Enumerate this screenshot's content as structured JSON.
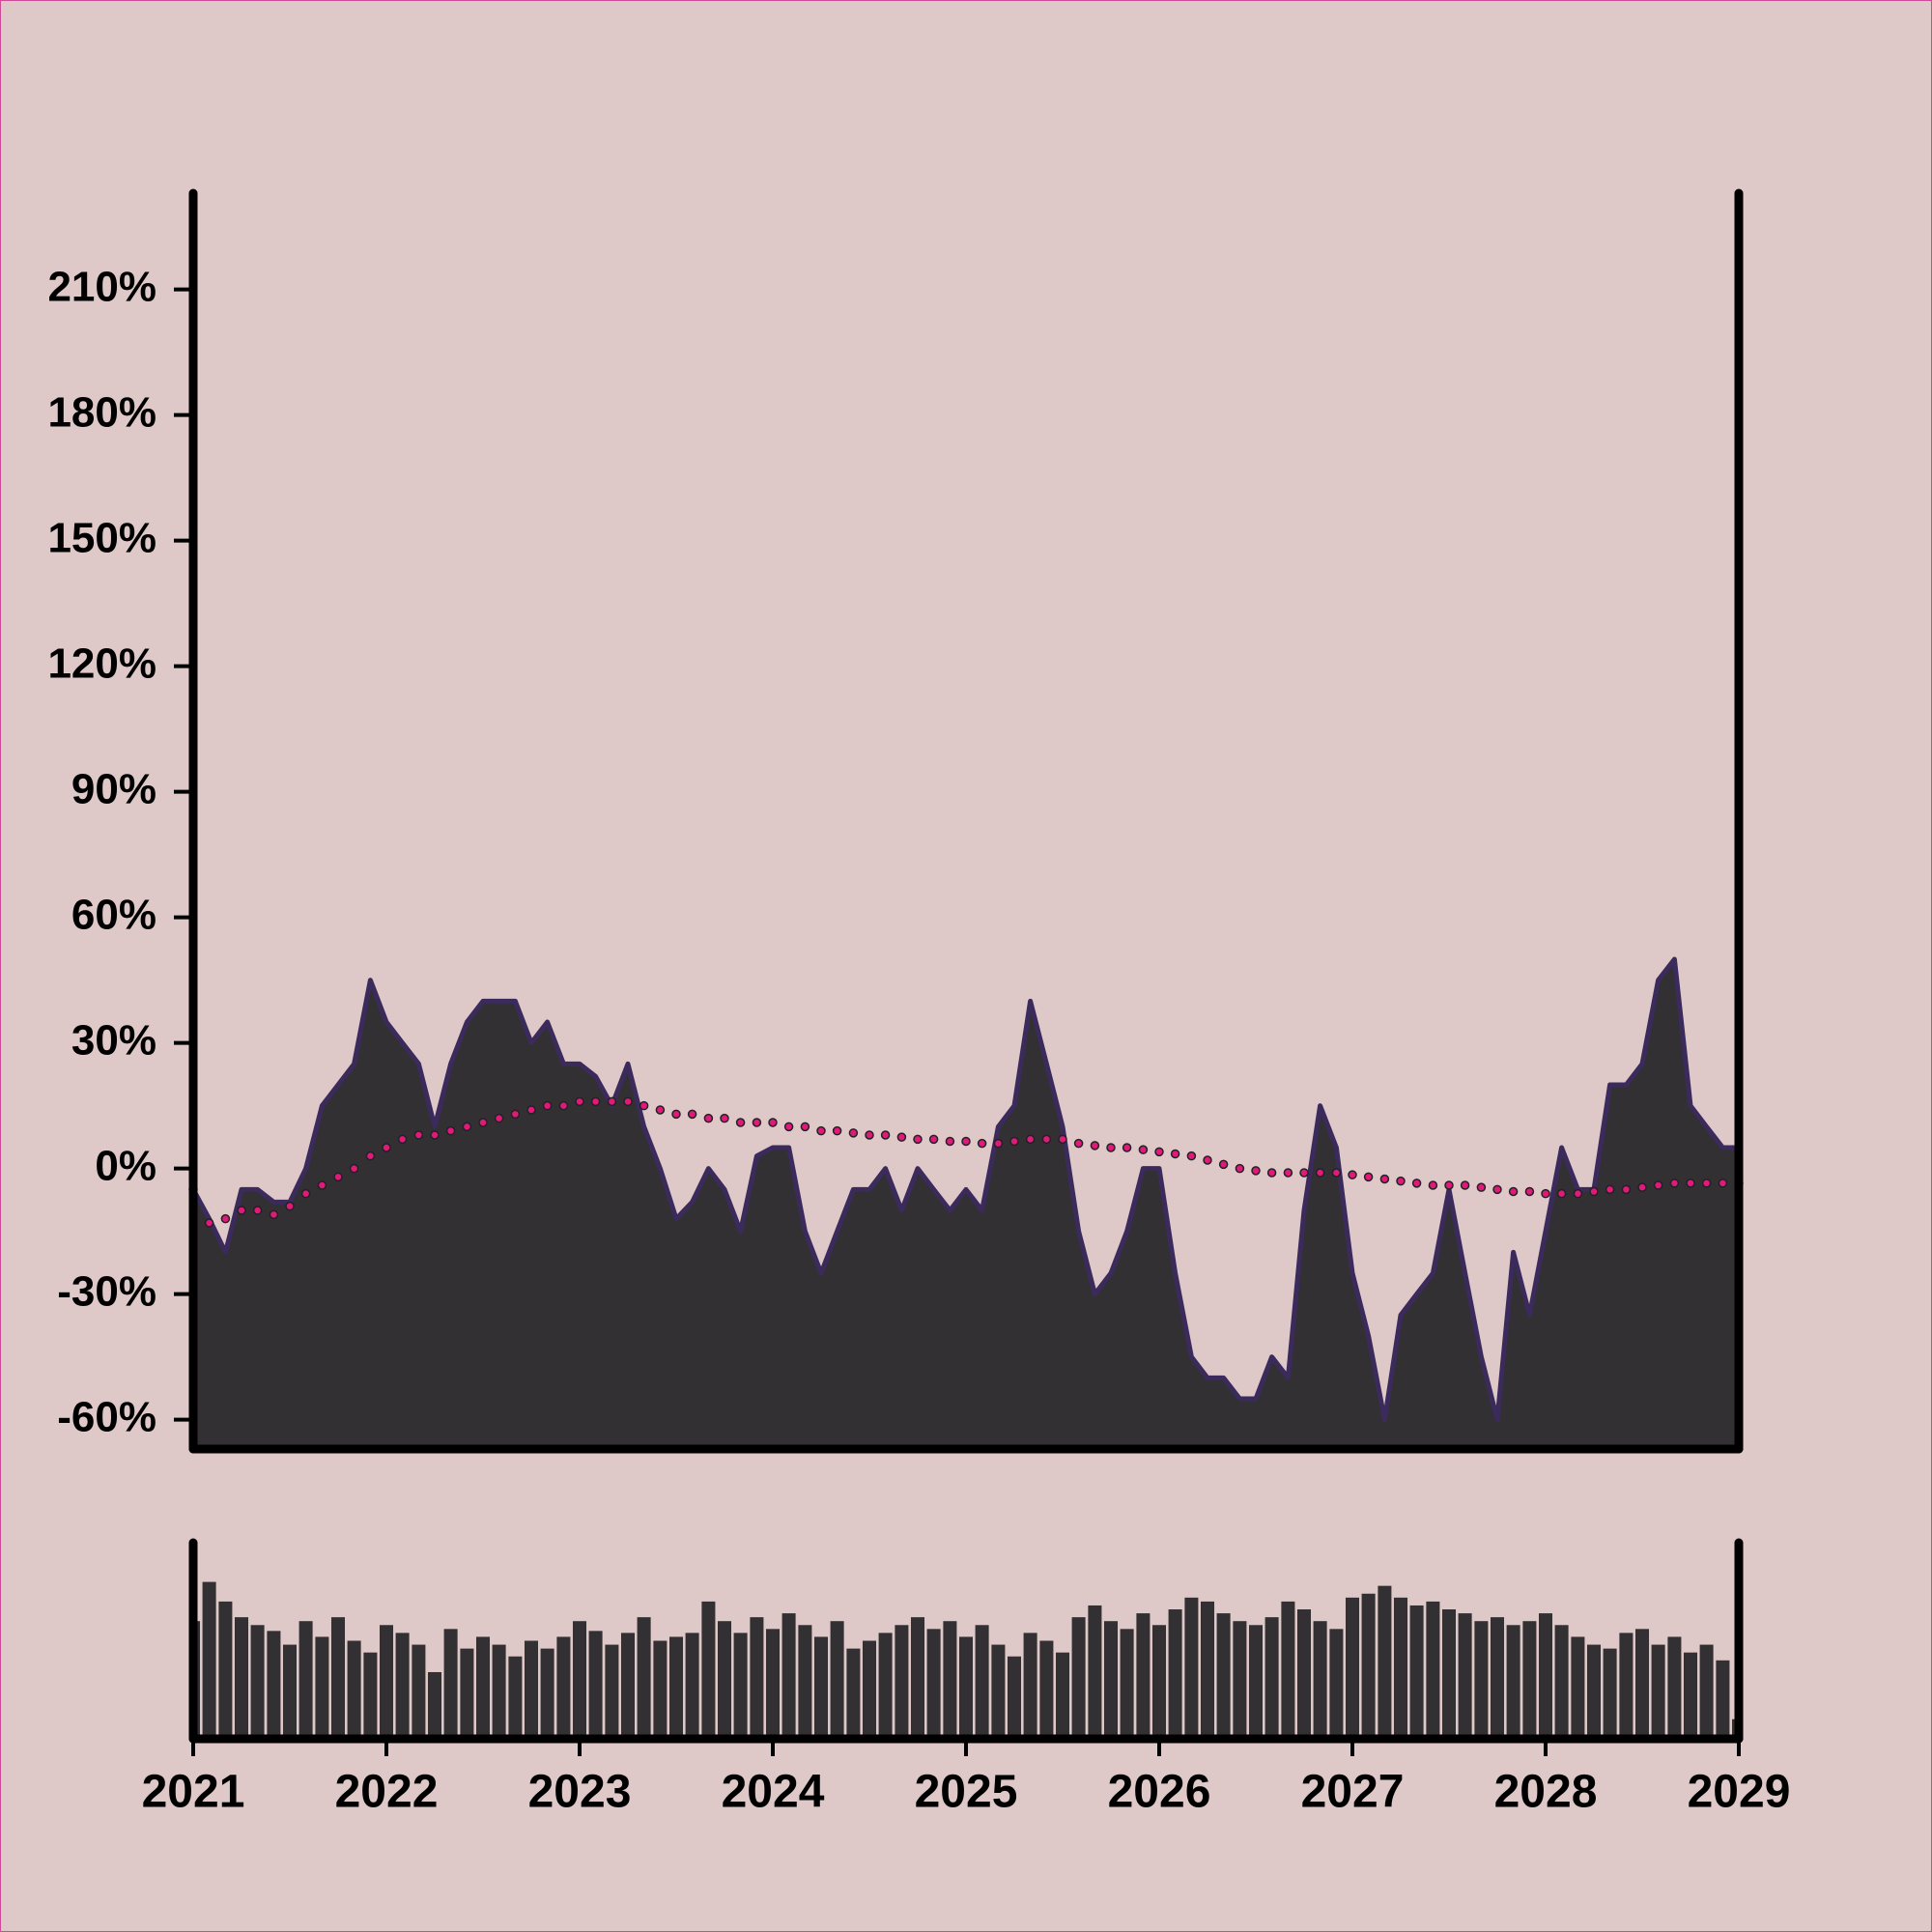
{
  "chart_data": [
    {
      "type": "area",
      "x": [
        2021,
        2021.083,
        2021.167,
        2021.25,
        2021.333,
        2021.417,
        2021.5,
        2021.583,
        2021.667,
        2021.75,
        2021.833,
        2021.917,
        2022,
        2022.083,
        2022.167,
        2022.25,
        2022.333,
        2022.417,
        2022.5,
        2022.583,
        2022.667,
        2022.75,
        2022.833,
        2022.917,
        2023,
        2023.083,
        2023.167,
        2023.25,
        2023.333,
        2023.417,
        2023.5,
        2023.583,
        2023.667,
        2023.75,
        2023.833,
        2023.917,
        2024,
        2024.083,
        2024.167,
        2024.25,
        2024.333,
        2024.417,
        2024.5,
        2024.583,
        2024.667,
        2024.75,
        2024.833,
        2024.917,
        2025,
        2025.083,
        2025.167,
        2025.25,
        2025.333,
        2025.417,
        2025.5,
        2025.583,
        2025.667,
        2025.75,
        2025.833,
        2025.917,
        2026,
        2026.083,
        2026.167,
        2026.25,
        2026.333,
        2026.417,
        2026.5,
        2026.583,
        2026.667,
        2026.75,
        2026.833,
        2026.917,
        2027,
        2027.083,
        2027.167,
        2027.25,
        2027.333,
        2027.417,
        2027.5,
        2027.583,
        2027.667,
        2027.75,
        2027.833,
        2027.917,
        2028,
        2028.083,
        2028.167,
        2028.25,
        2028.333,
        2028.417,
        2028.5,
        2028.583,
        2028.667,
        2028.75,
        2028.833,
        2028.917,
        2029
      ],
      "series": [
        {
          "color": "#333033",
          "line_color": "#3a2b5c",
          "values": [
            -5,
            -12,
            -20,
            -5,
            -5,
            -8,
            -8,
            0,
            15,
            20,
            25,
            45,
            35,
            30,
            25,
            10,
            25,
            35,
            40,
            40,
            40,
            30,
            35,
            25,
            25,
            22,
            15,
            25,
            10,
            0,
            -12,
            -8,
            0,
            -5,
            -15,
            3,
            5,
            5,
            -15,
            -25,
            -15,
            -5,
            -5,
            0,
            -10,
            0,
            -5,
            -10,
            -5,
            -10,
            10,
            15,
            40,
            25,
            10,
            -15,
            -30,
            -25,
            -15,
            0,
            0,
            -25,
            -45,
            -50,
            -50,
            -55,
            -55,
            -45,
            -50,
            -10,
            15,
            5,
            -25,
            -40,
            -60,
            -35,
            -30,
            -25,
            -5,
            -25,
            -45,
            -60,
            -20,
            -35,
            -15,
            5,
            -5,
            -5,
            20,
            20,
            25,
            45,
            50,
            15,
            10,
            5,
            5
          ]
        },
        {
          "color": "#e0197a",
          "values": [
            -5,
            -13,
            -12,
            -10,
            -10,
            -11,
            -9,
            -6,
            -4,
            -2,
            0,
            3,
            5,
            7,
            8,
            8,
            9,
            10,
            11,
            12,
            13,
            14,
            15,
            15,
            16,
            16,
            16,
            16,
            15,
            14,
            13,
            13,
            12,
            12,
            11,
            11,
            11,
            10,
            10,
            9,
            9,
            8.5,
            8,
            8,
            7.5,
            7,
            7,
            6.5,
            6.5,
            6,
            6,
            6.5,
            7,
            7,
            7,
            6,
            5.5,
            5,
            5,
            4.5,
            4,
            3.5,
            3,
            2,
            1,
            0,
            -0.5,
            -1,
            -1,
            -1,
            -1,
            -1,
            -1.5,
            -2,
            -2.5,
            -3,
            -3.5,
            -4,
            -4,
            -4,
            -4.5,
            -5,
            -5.5,
            -5.5,
            -6,
            -6,
            -6,
            -5.5,
            -5,
            -5,
            -4.5,
            -4,
            -3.5,
            -3.5,
            -3.5,
            -3.5,
            -3.5
          ]
        }
      ],
      "xlim": [
        2021,
        2029
      ],
      "ylim": [
        -67,
        233
      ],
      "yticks": [
        {
          "value": -60,
          "label": "-60%"
        },
        {
          "value": -30,
          "label": "-30%"
        },
        {
          "value": 0,
          "label": "0%"
        },
        {
          "value": 30,
          "label": "30%"
        },
        {
          "value": 60,
          "label": "60%"
        },
        {
          "value": 90,
          "label": "90%"
        },
        {
          "value": 120,
          "label": "120%"
        },
        {
          "value": 150,
          "label": "150%"
        },
        {
          "value": 180,
          "label": "180%"
        },
        {
          "value": 210,
          "label": "210%"
        }
      ]
    },
    {
      "type": "bar",
      "x": [
        2021,
        2021.083,
        2021.167,
        2021.25,
        2021.333,
        2021.417,
        2021.5,
        2021.583,
        2021.667,
        2021.75,
        2021.833,
        2021.917,
        2022,
        2022.083,
        2022.167,
        2022.25,
        2022.333,
        2022.417,
        2022.5,
        2022.583,
        2022.667,
        2022.75,
        2022.833,
        2022.917,
        2023,
        2023.083,
        2023.167,
        2023.25,
        2023.333,
        2023.417,
        2023.5,
        2023.583,
        2023.667,
        2023.75,
        2023.833,
        2023.917,
        2024,
        2024.083,
        2024.167,
        2024.25,
        2024.333,
        2024.417,
        2024.5,
        2024.583,
        2024.667,
        2024.75,
        2024.833,
        2024.917,
        2025,
        2025.083,
        2025.167,
        2025.25,
        2025.333,
        2025.417,
        2025.5,
        2025.583,
        2025.667,
        2025.75,
        2025.833,
        2025.917,
        2026,
        2026.083,
        2026.167,
        2026.25,
        2026.333,
        2026.417,
        2026.5,
        2026.583,
        2026.667,
        2026.75,
        2026.833,
        2026.917,
        2027,
        2027.083,
        2027.167,
        2027.25,
        2027.333,
        2027.417,
        2027.5,
        2027.583,
        2027.667,
        2027.75,
        2027.833,
        2027.917,
        2028,
        2028.083,
        2028.167,
        2028.25,
        2028.333,
        2028.417,
        2028.5,
        2028.583,
        2028.667,
        2028.75,
        2028.833,
        2028.917,
        2029
      ],
      "color": "#333033",
      "values": [
        60,
        80,
        70,
        62,
        58,
        55,
        48,
        60,
        52,
        62,
        50,
        44,
        58,
        54,
        48,
        34,
        56,
        46,
        52,
        48,
        42,
        50,
        46,
        52,
        60,
        55,
        48,
        54,
        62,
        50,
        52,
        54,
        70,
        60,
        54,
        62,
        56,
        64,
        58,
        52,
        60,
        46,
        50,
        54,
        58,
        62,
        56,
        60,
        52,
        58,
        48,
        42,
        54,
        50,
        44,
        62,
        68,
        60,
        56,
        64,
        58,
        66,
        72,
        70,
        64,
        60,
        58,
        62,
        70,
        66,
        60,
        56,
        72,
        74,
        78,
        72,
        68,
        70,
        66,
        64,
        60,
        62,
        58,
        60,
        64,
        58,
        52,
        48,
        46,
        54,
        56,
        48,
        52,
        44,
        48,
        40,
        10
      ],
      "ylim": [
        0,
        100
      ],
      "xticks": [
        2021,
        2022,
        2023,
        2024,
        2025,
        2026,
        2027,
        2028,
        2029
      ]
    }
  ]
}
